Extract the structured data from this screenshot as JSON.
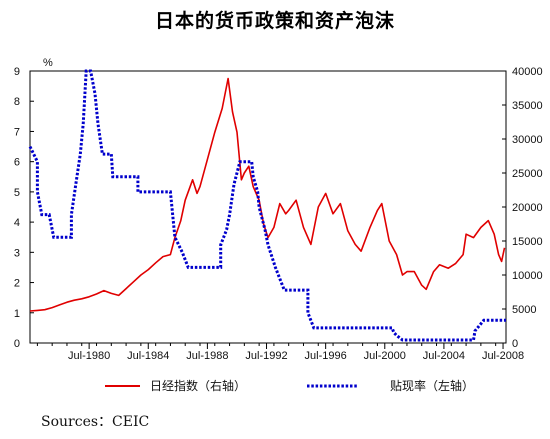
{
  "chart_data": {
    "type": "line",
    "title": "日本的货币政策和资产泡沫",
    "source": "Sources：CEIC",
    "y_left": {
      "unit_label": "%",
      "range": [
        0,
        9
      ],
      "ticks": [
        "0",
        "1",
        "2",
        "3",
        "4",
        "5",
        "6",
        "7",
        "8",
        "9"
      ]
    },
    "y_right": {
      "range": [
        0,
        40000
      ],
      "ticks": [
        "0",
        "5000",
        "10000",
        "15000",
        "20000",
        "25000",
        "30000",
        "35000",
        "40000"
      ]
    },
    "x_range": [
      1976.5,
      2008.7
    ],
    "x_ticks": [
      {
        "label": "Jul-1980",
        "x": 1980.5
      },
      {
        "label": "Jul-1984",
        "x": 1984.5
      },
      {
        "label": "Jul-1988",
        "x": 1988.5
      },
      {
        "label": "Jul-1992",
        "x": 1992.5
      },
      {
        "label": "Jul-1996",
        "x": 1996.5
      },
      {
        "label": "Jul-2000",
        "x": 2000.5
      },
      {
        "label": "Jul-2004",
        "x": 2004.5
      },
      {
        "label": "Jul-2008",
        "x": 2008.5
      }
    ],
    "grid": false,
    "legend_position": "bottom",
    "series": [
      {
        "name": "日经指数（右轴）",
        "axis": "right",
        "color": "#e00000",
        "style": "solid",
        "points": [
          [
            1976.5,
            4700
          ],
          [
            1977.0,
            4800
          ],
          [
            1977.5,
            4900
          ],
          [
            1978.0,
            5200
          ],
          [
            1978.5,
            5600
          ],
          [
            1979.0,
            6000
          ],
          [
            1979.5,
            6300
          ],
          [
            1980.0,
            6500
          ],
          [
            1980.5,
            6800
          ],
          [
            1981.0,
            7200
          ],
          [
            1981.5,
            7700
          ],
          [
            1982.0,
            7300
          ],
          [
            1982.5,
            7000
          ],
          [
            1983.0,
            8000
          ],
          [
            1983.5,
            9000
          ],
          [
            1984.0,
            10000
          ],
          [
            1984.5,
            10800
          ],
          [
            1985.0,
            11800
          ],
          [
            1985.5,
            12700
          ],
          [
            1986.0,
            13000
          ],
          [
            1986.3,
            15500
          ],
          [
            1986.7,
            18000
          ],
          [
            1987.0,
            21000
          ],
          [
            1987.5,
            24000
          ],
          [
            1987.8,
            22000
          ],
          [
            1988.0,
            23000
          ],
          [
            1988.5,
            27000
          ],
          [
            1989.0,
            31000
          ],
          [
            1989.5,
            34500
          ],
          [
            1989.9,
            38900
          ],
          [
            1990.2,
            34000
          ],
          [
            1990.5,
            31000
          ],
          [
            1990.8,
            24000
          ],
          [
            1991.0,
            25000
          ],
          [
            1991.3,
            26000
          ],
          [
            1991.6,
            23000
          ],
          [
            1992.0,
            21000
          ],
          [
            1992.3,
            17500
          ],
          [
            1992.6,
            15500
          ],
          [
            1993.0,
            17000
          ],
          [
            1993.4,
            20500
          ],
          [
            1993.8,
            19000
          ],
          [
            1994.0,
            19500
          ],
          [
            1994.5,
            21000
          ],
          [
            1995.0,
            17000
          ],
          [
            1995.5,
            14500
          ],
          [
            1996.0,
            20000
          ],
          [
            1996.5,
            22000
          ],
          [
            1997.0,
            19000
          ],
          [
            1997.5,
            20500
          ],
          [
            1998.0,
            16500
          ],
          [
            1998.5,
            14500
          ],
          [
            1998.9,
            13500
          ],
          [
            1999.5,
            17000
          ],
          [
            2000.0,
            19500
          ],
          [
            2000.3,
            20500
          ],
          [
            2000.8,
            15000
          ],
          [
            2001.3,
            13000
          ],
          [
            2001.7,
            10000
          ],
          [
            2002.0,
            10500
          ],
          [
            2002.5,
            10500
          ],
          [
            2003.0,
            8500
          ],
          [
            2003.3,
            7900
          ],
          [
            2003.8,
            10500
          ],
          [
            2004.2,
            11500
          ],
          [
            2004.8,
            11000
          ],
          [
            2005.3,
            11700
          ],
          [
            2005.8,
            13000
          ],
          [
            2006.0,
            16000
          ],
          [
            2006.5,
            15500
          ],
          [
            2007.0,
            17000
          ],
          [
            2007.5,
            18000
          ],
          [
            2007.9,
            16000
          ],
          [
            2008.2,
            13000
          ],
          [
            2008.4,
            12000
          ],
          [
            2008.6,
            14000
          ]
        ]
      },
      {
        "name": "贴现率（左轴）",
        "axis": "left",
        "color": "#0000cc",
        "style": "dotted",
        "points": [
          [
            1976.5,
            6.5
          ],
          [
            1977.0,
            6.0
          ],
          [
            1977.0,
            5.0
          ],
          [
            1977.3,
            4.25
          ],
          [
            1977.8,
            4.25
          ],
          [
            1978.1,
            3.5
          ],
          [
            1979.3,
            3.5
          ],
          [
            1979.3,
            4.25
          ],
          [
            1979.6,
            5.25
          ],
          [
            1979.9,
            6.25
          ],
          [
            1980.1,
            7.25
          ],
          [
            1980.3,
            9.0
          ],
          [
            1980.6,
            9.0
          ],
          [
            1980.9,
            8.25
          ],
          [
            1981.1,
            7.25
          ],
          [
            1981.4,
            6.25
          ],
          [
            1982.0,
            6.25
          ],
          [
            1982.1,
            5.5
          ],
          [
            1983.8,
            5.5
          ],
          [
            1983.8,
            5.0
          ],
          [
            1986.0,
            5.0
          ],
          [
            1986.1,
            4.5
          ],
          [
            1986.2,
            4.0
          ],
          [
            1986.3,
            3.5
          ],
          [
            1986.8,
            3.0
          ],
          [
            1987.2,
            2.5
          ],
          [
            1989.4,
            2.5
          ],
          [
            1989.4,
            3.25
          ],
          [
            1989.8,
            3.75
          ],
          [
            1990.0,
            4.25
          ],
          [
            1990.3,
            5.25
          ],
          [
            1990.7,
            6.0
          ],
          [
            1991.5,
            6.0
          ],
          [
            1991.6,
            5.5
          ],
          [
            1991.9,
            5.0
          ],
          [
            1992.0,
            4.5
          ],
          [
            1992.4,
            3.75
          ],
          [
            1992.6,
            3.25
          ],
          [
            1993.1,
            2.5
          ],
          [
            1993.7,
            1.75
          ],
          [
            1995.3,
            1.75
          ],
          [
            1995.3,
            1.0
          ],
          [
            1995.7,
            0.5
          ],
          [
            2001.0,
            0.5
          ],
          [
            2001.1,
            0.35
          ],
          [
            2001.3,
            0.25
          ],
          [
            2001.7,
            0.1
          ],
          [
            2006.5,
            0.1
          ],
          [
            2006.6,
            0.4
          ],
          [
            2007.2,
            0.75
          ],
          [
            2008.7,
            0.75
          ]
        ]
      }
    ]
  }
}
